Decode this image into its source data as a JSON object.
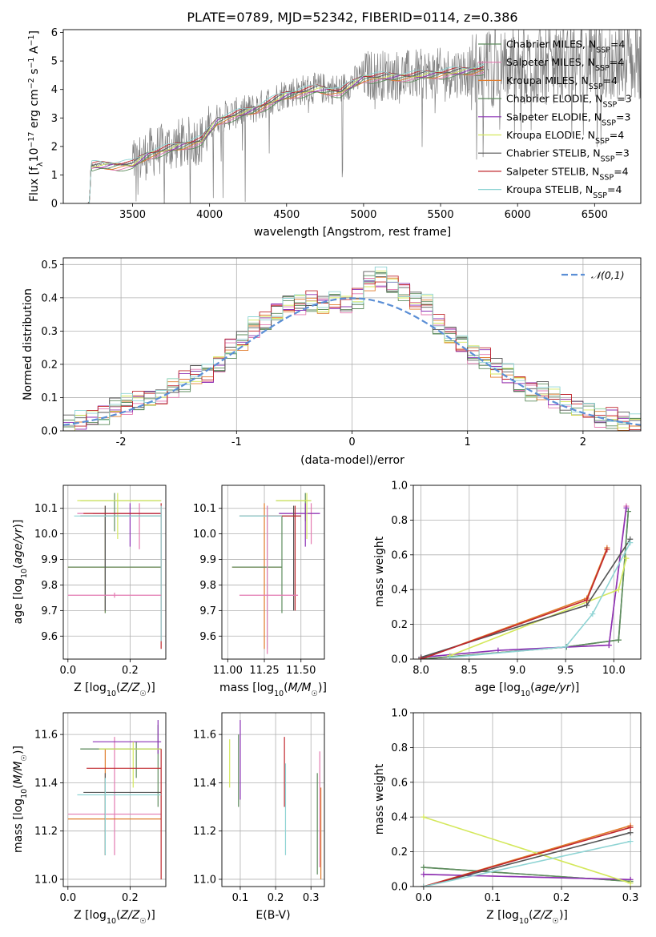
{
  "chart_data": [
    {
      "type": "line",
      "title": "PLATE=0789, MJD=52342, FIBERID=0114, z=0.386",
      "xlabel": "wavelength [Angstrom, rest frame]",
      "ylabel": "Flux [f_λ 10^-17 erg cm^-2 s^-1 A^-1]",
      "xlim": [
        3050,
        6800
      ],
      "ylim": [
        0,
        6.1
      ],
      "xticks": [
        3500,
        4000,
        4500,
        5000,
        5500,
        6000,
        6500
      ],
      "yticks": [
        0,
        1,
        2,
        3,
        4,
        5,
        6
      ],
      "legend": "upper-right",
      "data_trend": {
        "x": [
          3220,
          3230,
          3500,
          3600,
          3800,
          3950,
          4050,
          4300,
          4500,
          4700,
          4850,
          5000,
          5300,
          5600,
          6000,
          6400,
          6800
        ],
        "y": [
          0,
          1.35,
          1.4,
          1.75,
          2.1,
          2.25,
          3.0,
          3.35,
          3.9,
          4.05,
          4.0,
          4.5,
          4.5,
          4.6,
          4.8,
          4.95,
          5.0
        ]
      },
      "model_trend": {
        "x": [
          3220,
          3230,
          3500,
          3600,
          3800,
          3950,
          4050,
          4300,
          4500,
          4700,
          4850,
          5000,
          5300,
          5600,
          5780
        ],
        "y": [
          0,
          1.3,
          1.35,
          1.7,
          2.0,
          2.2,
          2.9,
          3.3,
          3.8,
          4.0,
          3.9,
          4.4,
          4.45,
          4.6,
          4.7
        ]
      },
      "series": [
        {
          "name": "Chabrier MILES, N_SSP=4"
        },
        {
          "name": "Salpeter MILES, N_SSP=4"
        },
        {
          "name": "Kroupa MILES, N_SSP=4"
        },
        {
          "name": "Chabrier ELODIE, N_SSP=3"
        },
        {
          "name": "Salpeter ELODIE, N_SSP=3"
        },
        {
          "name": "Kroupa ELODIE, N_SSP=4"
        },
        {
          "name": "Chabrier STELIB, N_SSP=3"
        },
        {
          "name": "Salpeter STELIB, N_SSP=4"
        },
        {
          "name": "Kroupa STELIB, N_SSP=4"
        }
      ]
    },
    {
      "type": "line",
      "xlabel": "(data-model)/error",
      "ylabel": "Normed distribution",
      "xlim": [
        -2.5,
        2.5
      ],
      "ylim": [
        0,
        0.52
      ],
      "xticks": [
        -2,
        -1,
        0,
        1,
        2
      ],
      "yticks": [
        0.0,
        0.1,
        0.2,
        0.3,
        0.4,
        0.5
      ],
      "legend": "upper-right",
      "reference_curve": {
        "name": "𝒩(0,1)",
        "mean": 0,
        "sigma": 1
      },
      "bin_width": 0.1,
      "histogram_values": [
        0.02,
        0.03,
        0.04,
        0.05,
        0.07,
        0.08,
        0.09,
        0.1,
        0.1,
        0.13,
        0.15,
        0.17,
        0.17,
        0.2,
        0.25,
        0.27,
        0.31,
        0.33,
        0.36,
        0.38,
        0.38,
        0.39,
        0.38,
        0.39,
        0.38,
        0.4,
        0.45,
        0.46,
        0.44,
        0.42,
        0.39,
        0.38,
        0.32,
        0.29,
        0.26,
        0.23,
        0.22,
        0.19,
        0.17,
        0.14,
        0.12,
        0.12,
        0.1,
        0.08,
        0.07,
        0.06,
        0.04,
        0.04,
        0.03,
        0.02
      ]
    },
    {
      "type": "scatter",
      "xlabel": "Z [log10(Z/Z☉)]",
      "ylabel": "age  [log10(age/yr)]",
      "xlim": [
        -0.015,
        0.315
      ],
      "ylim": [
        9.51,
        10.19
      ],
      "xticks": [
        0.0,
        0.2
      ],
      "yticks": [
        9.6,
        9.7,
        9.8,
        9.9,
        10.0,
        10.1
      ],
      "points": [
        {
          "series": 0,
          "x": 0.15,
          "y": 10.13,
          "xerr": [
            0.04,
            0.3
          ],
          "yerr": [
            10.01,
            10.16
          ]
        },
        {
          "series": 1,
          "x": 0.23,
          "y": 10.08,
          "xerr": [
            0.03,
            0.3
          ],
          "yerr": [
            9.94,
            10.12
          ]
        },
        {
          "series": 2,
          "x": 0.12,
          "y": 9.87,
          "xerr": [
            0.0,
            0.3
          ],
          "yerr": [
            9.69,
            10.11
          ]
        },
        {
          "series": 3,
          "x": 0.12,
          "y": 9.87,
          "xerr": [
            0.0,
            0.3
          ],
          "yerr": [
            9.69,
            10.07
          ]
        },
        {
          "series": 4,
          "x": 0.2,
          "y": 10.08,
          "xerr": [
            0.08,
            0.3
          ],
          "yerr": [
            9.95,
            10.12
          ]
        },
        {
          "series": 5,
          "x": 0.16,
          "y": 10.13,
          "xerr": [
            0.03,
            0.3
          ],
          "yerr": [
            9.98,
            10.16
          ]
        },
        {
          "series": 6,
          "x": 0.12,
          "y": 10.07,
          "xerr": [
            0.04,
            0.3
          ],
          "yerr": [
            9.7,
            10.11
          ]
        },
        {
          "series": 7,
          "x": 0.3,
          "y": 10.08,
          "xerr": [
            0.05,
            0.3
          ],
          "yerr": [
            9.55,
            10.12
          ]
        },
        {
          "series": 8,
          "x": 0.3,
          "y": 10.07,
          "xerr": [
            0.02,
            0.3
          ],
          "yerr": [
            9.58,
            10.11
          ]
        },
        {
          "series": 1,
          "x": 0.15,
          "y": 9.76,
          "xerr": [
            0.0,
            0.3
          ],
          "yerr": [
            9.75,
            9.77
          ]
        }
      ]
    },
    {
      "type": "scatter",
      "xlabel": "mass [log10(M/M☉)]",
      "xlim": [
        10.96,
        11.66
      ],
      "ylim": [
        9.51,
        10.19
      ],
      "xticks": [
        11.0,
        11.25,
        11.5
      ],
      "yticks": [
        9.6,
        9.7,
        9.8,
        9.9,
        10.0,
        10.1
      ],
      "points": [
        {
          "series": 0,
          "x": 11.53,
          "y": 10.13,
          "xerr": [
            11.33,
            11.57
          ],
          "yerr": [
            10.05,
            10.16
          ]
        },
        {
          "series": 1,
          "x": 11.57,
          "y": 10.08,
          "xerr": [
            11.35,
            11.63
          ],
          "yerr": [
            9.96,
            10.12
          ]
        },
        {
          "series": 2,
          "x": 11.25,
          "y": 9.87,
          "xerr": [
            11.03,
            11.37
          ],
          "yerr": [
            9.55,
            10.12
          ]
        },
        {
          "series": 3,
          "x": 11.37,
          "y": 9.87,
          "xerr": [
            11.03,
            11.37
          ],
          "yerr": [
            9.69,
            10.07
          ]
        },
        {
          "series": 4,
          "x": 11.53,
          "y": 10.08,
          "xerr": [
            11.35,
            11.63
          ],
          "yerr": [
            9.95,
            10.12
          ]
        },
        {
          "series": 5,
          "x": 11.54,
          "y": 10.13,
          "xerr": [
            11.33,
            11.57
          ],
          "yerr": [
            9.98,
            10.16
          ]
        },
        {
          "series": 6,
          "x": 11.45,
          "y": 10.07,
          "xerr": [
            11.08,
            11.5
          ],
          "yerr": [
            9.7,
            10.11
          ]
        },
        {
          "series": 7,
          "x": 11.46,
          "y": 10.07,
          "xerr": [
            11.27,
            11.5
          ],
          "yerr": [
            9.7,
            10.11
          ]
        },
        {
          "series": 8,
          "x": 11.27,
          "y": 10.07,
          "xerr": [
            11.08,
            11.37
          ],
          "yerr": [
            9.55,
            10.11
          ]
        },
        {
          "series": 1,
          "x": 11.27,
          "y": 9.76,
          "xerr": [
            11.08,
            11.48
          ],
          "yerr": [
            9.53,
            10.11
          ]
        }
      ]
    },
    {
      "type": "line",
      "xlabel": "age  [log10(age/yr)]",
      "ylabel": "mass weight",
      "xlim": [
        7.92,
        10.28
      ],
      "ylim": [
        0,
        1.0
      ],
      "xticks": [
        8.0,
        8.5,
        9.0,
        9.5,
        10.0
      ],
      "yticks": [
        0.0,
        0.2,
        0.4,
        0.6,
        0.8,
        1.0
      ],
      "series": [
        {
          "x": [
            8.0,
            9.51,
            10.05,
            10.15
          ],
          "y": [
            0.0,
            0.07,
            0.11,
            0.85
          ]
        },
        {
          "x": [
            8.0,
            9.51,
            9.95,
            10.13
          ],
          "y": [
            0.0,
            0.07,
            0.08,
            0.88
          ]
        },
        {
          "x": [
            8.0,
            9.72,
            9.93
          ],
          "y": [
            0.0,
            0.35,
            0.64
          ]
        },
        {
          "x": [
            8.0,
            9.51,
            10.05,
            10.15
          ],
          "y": [
            0.0,
            0.07,
            0.11,
            0.85
          ]
        },
        {
          "x": [
            8.0,
            8.8,
            9.95,
            10.13
          ],
          "y": [
            0.01,
            0.05,
            0.08,
            0.87
          ]
        },
        {
          "x": [
            8.3,
            10.05,
            10.13
          ],
          "y": [
            0.02,
            0.4,
            0.58
          ]
        },
        {
          "x": [
            8.0,
            9.72,
            10.17
          ],
          "y": [
            0.01,
            0.31,
            0.69
          ]
        },
        {
          "x": [
            8.0,
            9.72,
            9.93
          ],
          "y": [
            0.0,
            0.34,
            0.63
          ]
        },
        {
          "x": [
            8.3,
            9.5,
            9.78,
            10.17
          ],
          "y": [
            0.01,
            0.07,
            0.26,
            0.67
          ]
        }
      ]
    },
    {
      "type": "scatter",
      "xlabel": "Z [log10(Z/Z☉)]",
      "ylabel": "mass [log10(M/M☉)]",
      "xlim": [
        -0.015,
        0.315
      ],
      "ylim": [
        10.97,
        11.69
      ],
      "xticks": [
        0.0,
        0.2
      ],
      "yticks": [
        11.0,
        11.2,
        11.4,
        11.6
      ],
      "points": [
        {
          "series": 0,
          "x": 0.22,
          "y": 11.54,
          "xerr": [
            0.04,
            0.3
          ],
          "yerr": [
            11.42,
            11.57
          ]
        },
        {
          "series": 1,
          "x": 0.15,
          "y": 11.27,
          "xerr": [
            0.0,
            0.3
          ],
          "yerr": [
            11.1,
            11.59
          ]
        },
        {
          "series": 2,
          "x": 0.12,
          "y": 11.25,
          "xerr": [
            0.0,
            0.3
          ],
          "yerr": [
            11.1,
            11.54
          ]
        },
        {
          "series": 3,
          "x": 0.29,
          "y": 11.54,
          "xerr": [
            0.04,
            0.3
          ],
          "yerr": [
            11.3,
            11.64
          ]
        },
        {
          "series": 4,
          "x": 0.29,
          "y": 11.57,
          "xerr": [
            0.08,
            0.3
          ],
          "yerr": [
            11.52,
            11.66
          ]
        },
        {
          "series": 5,
          "x": 0.21,
          "y": 11.54,
          "xerr": [
            0.1,
            0.3
          ],
          "yerr": [
            11.38,
            11.57
          ]
        },
        {
          "series": 6,
          "x": 0.12,
          "y": 11.36,
          "xerr": [
            0.05,
            0.3
          ],
          "yerr": [
            11.1,
            11.44
          ]
        },
        {
          "series": 7,
          "x": 0.3,
          "y": 11.46,
          "xerr": [
            0.06,
            0.3
          ],
          "yerr": [
            11.0,
            11.54
          ]
        },
        {
          "series": 8,
          "x": 0.12,
          "y": 11.35,
          "xerr": [
            0.03,
            0.3
          ],
          "yerr": [
            11.1,
            11.42
          ]
        }
      ]
    },
    {
      "type": "scatter",
      "xlabel": "E(B-V)",
      "xlim": [
        0.048,
        0.338
      ],
      "ylim": [
        10.97,
        11.69
      ],
      "xticks": [
        0.1,
        0.2,
        0.3
      ],
      "yticks": [
        11.0,
        11.2,
        11.4,
        11.6
      ],
      "points": [
        {
          "series": 0,
          "x": 0.095,
          "y": 11.46,
          "yerr": [
            11.3,
            11.6
          ]
        },
        {
          "series": 4,
          "x": 0.1,
          "y": 11.46,
          "yerr": [
            11.33,
            11.66
          ]
        },
        {
          "series": 5,
          "x": 0.07,
          "y": 11.46,
          "yerr": [
            11.38,
            11.58
          ]
        },
        {
          "series": 7,
          "x": 0.225,
          "y": 11.5,
          "yerr": [
            11.3,
            11.59
          ]
        },
        {
          "series": 8,
          "x": 0.228,
          "y": 11.3,
          "yerr": [
            11.1,
            11.48
          ]
        },
        {
          "series": 2,
          "x": 0.328,
          "y": 11.2,
          "yerr": [
            11.0,
            11.38
          ]
        },
        {
          "series": 1,
          "x": 0.325,
          "y": 11.3,
          "yerr": [
            11.05,
            11.53
          ]
        },
        {
          "series": 3,
          "x": 0.318,
          "y": 11.2,
          "yerr": [
            11.02,
            11.44
          ]
        }
      ]
    },
    {
      "type": "line",
      "xlabel": "Z [log10(Z/Z☉)]",
      "ylabel": "mass weight",
      "xlim": [
        -0.015,
        0.315
      ],
      "ylim": [
        0,
        1.0
      ],
      "xticks": [
        0.0,
        0.1,
        0.2,
        0.3
      ],
      "yticks": [
        0.0,
        0.2,
        0.4,
        0.6,
        0.8,
        1.0
      ],
      "series": [
        {
          "x": [
            0.0,
            0.3
          ],
          "y": [
            0.11,
            0.03
          ]
        },
        {
          "x": [
            0.0,
            0.3
          ],
          "y": [
            0.07,
            0.04
          ]
        },
        {
          "x": [
            0.0,
            0.3
          ],
          "y": [
            0.0,
            0.35
          ]
        },
        {
          "x": [
            0.0,
            0.3
          ],
          "y": [
            0.11,
            0.03
          ]
        },
        {
          "x": [
            0.0,
            0.3
          ],
          "y": [
            0.07,
            0.04
          ]
        },
        {
          "x": [
            0.0,
            0.3
          ],
          "y": [
            0.4,
            0.02
          ]
        },
        {
          "x": [
            0.0,
            0.3
          ],
          "y": [
            0.0,
            0.31
          ]
        },
        {
          "x": [
            0.0,
            0.3
          ],
          "y": [
            0.0,
            0.34
          ]
        },
        {
          "x": [
            0.0,
            0.3
          ],
          "y": [
            0.0,
            0.26
          ]
        }
      ]
    }
  ],
  "colors": [
    "#5e8c5e",
    "#e37ab0",
    "#e07b2b",
    "#5e8c5e",
    "#8b32b5",
    "#d4e85c",
    "#555555",
    "#c0272d",
    "#8fd4d4"
  ],
  "fig_colors": {
    "data": "#808080",
    "norm": "#5b8fd6",
    "grid": "#b0b0b0"
  }
}
